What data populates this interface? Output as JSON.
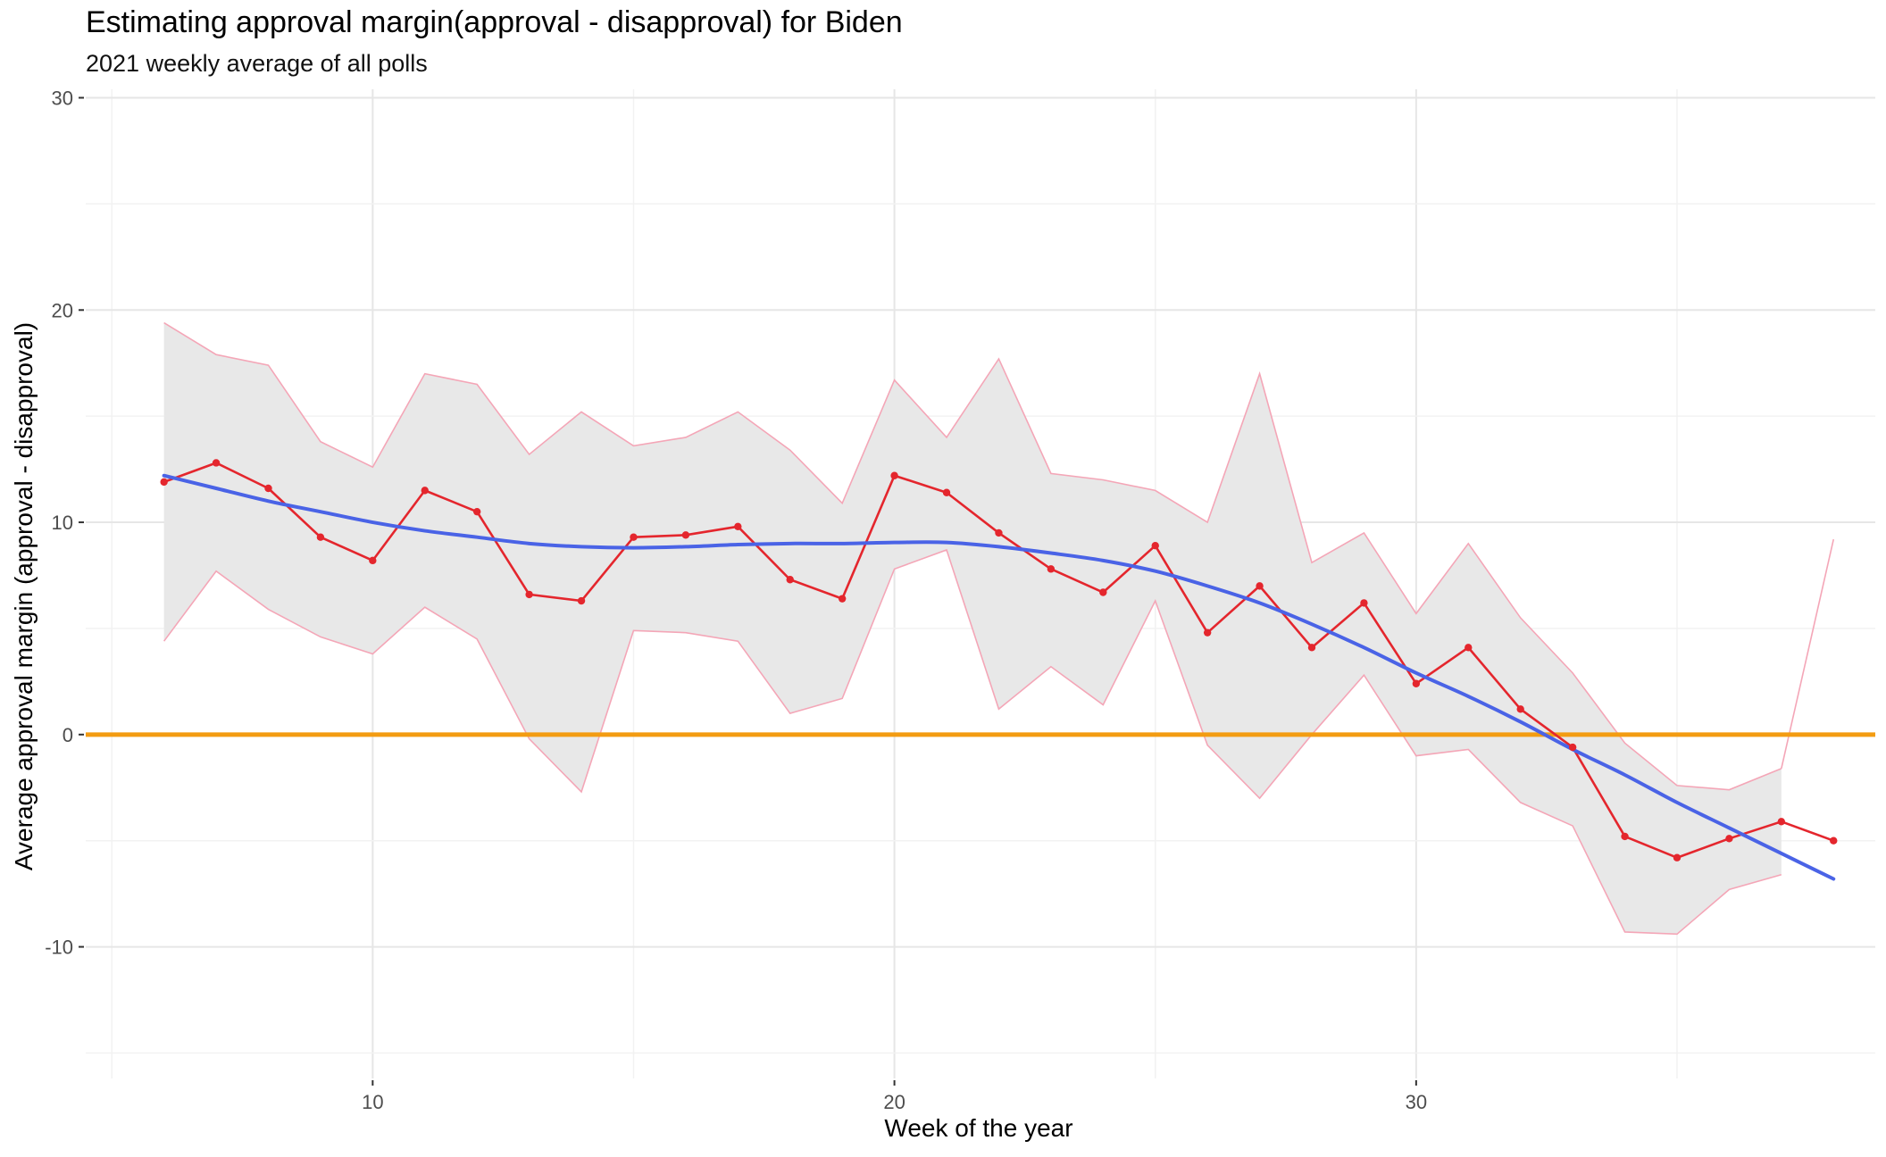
{
  "chart_data": {
    "type": "line",
    "title": "Estimating approval margin(approval - disapproval) for Biden",
    "subtitle": "2021 weekly average of all polls",
    "xlabel": "Week of the year",
    "ylabel": "Average approval margin (approval - disapproval)",
    "xlim": [
      4.5,
      38.8
    ],
    "ylim": [
      -16.2,
      30.4
    ],
    "x_ticks": [
      10,
      20,
      30
    ],
    "y_ticks": [
      -10,
      0,
      10,
      20,
      30
    ],
    "grid": true,
    "legend": "none",
    "colors": {
      "ribbon_fill": "#e8e8e8",
      "ribbon_edge": "#f4a6b7",
      "weekly": "#e4262d",
      "smooth": "#4a63e6",
      "zero_line": "#f39c12",
      "grid_major": "#e6e6e6",
      "grid_minor": "#f2f2f2"
    },
    "reference_line": {
      "y": 0
    },
    "x": [
      6,
      7,
      8,
      9,
      10,
      11,
      12,
      13,
      14,
      15,
      16,
      17,
      18,
      19,
      20,
      21,
      22,
      23,
      24,
      25,
      26,
      27,
      28,
      29,
      30,
      31,
      32,
      33,
      34,
      35,
      36,
      37,
      38
    ],
    "series": [
      {
        "role": "weekly average",
        "values": [
          11.9,
          12.8,
          11.6,
          9.3,
          8.2,
          11.5,
          10.5,
          6.6,
          6.3,
          9.3,
          9.4,
          9.8,
          7.3,
          6.4,
          12.2,
          11.4,
          9.5,
          7.8,
          6.7,
          8.9,
          4.8,
          7.0,
          4.1,
          6.2,
          2.4,
          4.1,
          1.2,
          -0.6,
          -4.8,
          -5.8,
          -4.9,
          -4.1,
          -5.0
        ]
      },
      {
        "role": "smooth trend",
        "values": [
          12.2,
          11.6,
          11.0,
          10.5,
          10.0,
          9.6,
          9.3,
          9.0,
          8.85,
          8.8,
          8.85,
          8.95,
          9.0,
          9.0,
          9.05,
          9.05,
          8.85,
          8.55,
          8.2,
          7.7,
          7.0,
          6.2,
          5.2,
          4.1,
          2.9,
          1.8,
          0.6,
          -0.7,
          -1.9,
          -3.2,
          -4.4,
          -5.6,
          -6.8
        ]
      }
    ],
    "band": {
      "role": "interval",
      "x": [
        6,
        7,
        8,
        9,
        10,
        11,
        12,
        13,
        14,
        15,
        16,
        17,
        18,
        19,
        20,
        21,
        22,
        23,
        24,
        25,
        26,
        27,
        28,
        29,
        30,
        31,
        32,
        33,
        34,
        35,
        36,
        37
      ],
      "upper": [
        19.4,
        17.9,
        17.4,
        13.8,
        12.6,
        17.0,
        16.5,
        13.2,
        15.2,
        13.6,
        14.0,
        15.2,
        13.4,
        10.9,
        16.7,
        14.0,
        17.7,
        12.3,
        12.0,
        11.5,
        10.0,
        17.0,
        8.1,
        9.5,
        5.7,
        9.0,
        5.5,
        2.9,
        -0.4,
        -2.4,
        -2.6,
        -1.6
      ],
      "lower": [
        4.4,
        7.7,
        5.9,
        4.6,
        3.8,
        6.0,
        4.5,
        -0.2,
        -2.7,
        4.9,
        4.8,
        4.4,
        1.0,
        1.7,
        7.8,
        8.7,
        1.2,
        3.2,
        1.4,
        6.3,
        -0.5,
        -3.0,
        0.0,
        2.8,
        -1.0,
        -0.7,
        -3.2,
        -4.3,
        -9.3,
        -9.4,
        -7.3,
        -6.6
      ]
    },
    "extra_edge": {
      "x": [
        37,
        38
      ],
      "y": [
        -1.6,
        9.2
      ]
    }
  }
}
